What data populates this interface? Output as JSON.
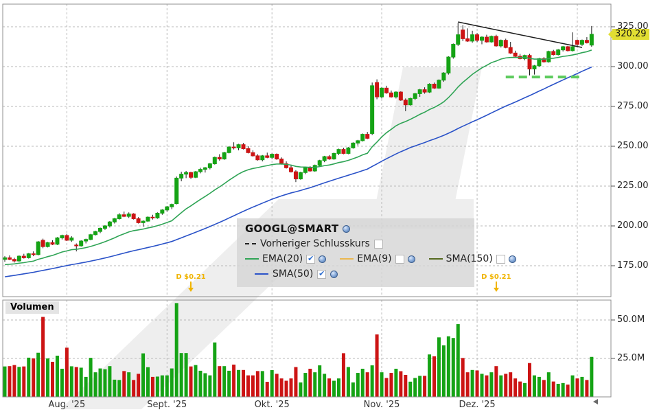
{
  "instrument": {
    "title": "GOOGL@SMART"
  },
  "legend": {
    "items": [
      {
        "label": "Vorheriger Schlusskurs",
        "style": "dashed",
        "color": "#222222",
        "checked": false,
        "globe": false
      },
      {
        "label": "EMA(20)",
        "style": "solid",
        "color": "#2fa455",
        "checked": true,
        "globe": true
      },
      {
        "label": "EMA(9)",
        "style": "solid",
        "color": "#eab74e",
        "checked": false,
        "globe": true
      },
      {
        "label": "SMA(150)",
        "style": "solid",
        "color": "#55691e",
        "checked": false,
        "globe": true
      },
      {
        "label": "SMA(50)",
        "style": "solid",
        "color": "#2a52c8",
        "checked": true,
        "globe": true
      }
    ]
  },
  "volume_label": "Volumen",
  "price_axis": {
    "ticks": [
      325,
      300,
      275,
      250,
      225,
      200,
      175
    ],
    "labels": [
      "325.00",
      "300.00",
      "275.00",
      "250.00",
      "225.00",
      "200.00",
      "175.00"
    ],
    "current_price": 320.29,
    "current_price_label": "320.29",
    "tag_color": "#e2de33"
  },
  "volume_axis": {
    "ticks": [
      50,
      25
    ],
    "labels": [
      "50.0M",
      "25.0M"
    ]
  },
  "x_axis": {
    "month_labels": [
      {
        "index": 13,
        "text": "Aug. '25"
      },
      {
        "index": 34,
        "text": "Sept. '25"
      },
      {
        "index": 56,
        "text": "Okt. '25"
      },
      {
        "index": 79,
        "text": "Nov. '25"
      },
      {
        "index": 99,
        "text": "Dez. '25"
      }
    ],
    "gridline_indices": [
      13,
      34,
      56,
      79,
      99,
      120
    ]
  },
  "dividends": [
    {
      "label": "D $0.21",
      "index": 39
    },
    {
      "label": "D $0.21",
      "index": 103
    }
  ],
  "annotations": {
    "trendline": {
      "i1": 95,
      "p1": 328.0,
      "i2": 121,
      "p2": 312.0
    },
    "support_dashed": {
      "i1": 105,
      "i2": 121,
      "price": 293.5
    }
  },
  "colors": {
    "up": "#15a315",
    "down": "#cc1414",
    "wick": "#1a1a1a",
    "ema20": "#2fa455",
    "sma50": "#2a52c8",
    "trend": "#1a1a1a",
    "support": "#5ecb5e",
    "grid": "#b9b9b9",
    "border": "#8f8f8f",
    "dividend": "#f0b400",
    "watermark": "#e3e3e3"
  },
  "chart_data": {
    "type": "candlestick+volume",
    "price_unit": "USD",
    "volume_unit": "millions of shares",
    "ylim_price": [
      162,
      332
    ],
    "ylim_volume": [
      0,
      63
    ],
    "visible_indicators": [
      "EMA(20)",
      "SMA(50)"
    ],
    "candles_format": [
      "open",
      "high",
      "low",
      "close",
      "volume_M"
    ],
    "candles": [
      [
        179.0,
        181.0,
        177.5,
        180.0,
        19.8
      ],
      [
        180.0,
        181.5,
        178.5,
        179.0,
        20.0
      ],
      [
        179.0,
        180.0,
        177.0,
        178.0,
        20.7
      ],
      [
        178.0,
        181.5,
        177.5,
        181.0,
        19.5
      ],
      [
        181.0,
        182.5,
        179.5,
        180.0,
        19.8
      ],
      [
        180.0,
        183.0,
        179.5,
        182.5,
        25.5
      ],
      [
        182.5,
        184.0,
        181.0,
        182.0,
        25.0
      ],
      [
        182.0,
        190.5,
        181.5,
        190.0,
        28.7
      ],
      [
        191.0,
        192.0,
        186.0,
        187.0,
        52.0
      ],
      [
        187.0,
        190.0,
        186.5,
        189.5,
        25.0
      ],
      [
        189.5,
        191.0,
        188.0,
        188.5,
        22.8
      ],
      [
        188.5,
        193.0,
        188.0,
        192.5,
        26.8
      ],
      [
        192.5,
        194.5,
        191.5,
        194.0,
        18.3
      ],
      [
        194.0,
        195.0,
        190.5,
        191.0,
        32.0
      ],
      [
        191.0,
        193.5,
        190.0,
        192.5,
        19.9
      ],
      [
        188.0,
        189.0,
        184.0,
        187.5,
        19.4
      ],
      [
        187.5,
        191.0,
        187.0,
        190.5,
        19.0
      ],
      [
        190.5,
        192.0,
        189.0,
        191.5,
        13.0
      ],
      [
        191.5,
        195.0,
        191.0,
        194.5,
        25.4
      ],
      [
        194.5,
        197.0,
        194.0,
        196.5,
        16.0
      ],
      [
        196.5,
        199.0,
        195.5,
        198.5,
        18.5
      ],
      [
        198.5,
        200.5,
        197.5,
        200.0,
        18.0
      ],
      [
        200.0,
        203.0,
        199.0,
        202.5,
        20.0
      ],
      [
        202.5,
        205.0,
        201.5,
        204.5,
        11.2
      ],
      [
        204.5,
        208.0,
        204.0,
        207.0,
        11.0
      ],
      [
        207.0,
        209.0,
        205.5,
        206.0,
        16.8
      ],
      [
        206.0,
        208.5,
        205.0,
        207.5,
        16.0
      ],
      [
        207.5,
        208.0,
        204.0,
        204.5,
        11.0
      ],
      [
        204.5,
        205.5,
        201.5,
        202.0,
        15.0
      ],
      [
        202.0,
        203.5,
        199.5,
        203.0,
        28.3
      ],
      [
        203.0,
        206.0,
        202.5,
        205.5,
        19.3
      ],
      [
        205.5,
        207.0,
        204.0,
        205.0,
        13.0
      ],
      [
        205.0,
        208.5,
        204.5,
        208.0,
        13.2
      ],
      [
        208.0,
        210.5,
        207.0,
        210.0,
        14.0
      ],
      [
        210.0,
        212.5,
        209.0,
        212.0,
        14.0
      ],
      [
        212.0,
        214.0,
        210.5,
        213.5,
        18.5
      ],
      [
        214.0,
        231.0,
        213.5,
        230.0,
        61.0
      ],
      [
        230.0,
        234.0,
        228.0,
        232.5,
        28.5
      ],
      [
        232.5,
        234.5,
        230.0,
        233.5,
        28.5
      ],
      [
        233.5,
        234.0,
        229.5,
        230.5,
        19.8
      ],
      [
        230.5,
        234.5,
        230.0,
        234.0,
        20.7
      ],
      [
        234.0,
        236.5,
        233.0,
        235.5,
        17.0
      ],
      [
        235.5,
        237.0,
        233.5,
        236.5,
        15.4
      ],
      [
        236.5,
        239.5,
        235.5,
        239.0,
        14.0
      ],
      [
        239.0,
        243.5,
        238.5,
        243.0,
        35.4
      ],
      [
        243.0,
        245.0,
        241.0,
        242.0,
        20.0
      ],
      [
        242.0,
        246.5,
        241.5,
        246.0,
        20.0
      ],
      [
        246.0,
        250.0,
        245.5,
        249.5,
        17.0
      ],
      [
        249.5,
        252.5,
        248.0,
        249.0,
        21.0
      ],
      [
        249.0,
        251.5,
        247.5,
        251.0,
        17.5
      ],
      [
        251.0,
        252.0,
        248.0,
        248.5,
        17.5
      ],
      [
        248.5,
        250.0,
        245.5,
        246.0,
        14.0
      ],
      [
        246.0,
        247.5,
        243.5,
        244.0,
        14.0
      ],
      [
        244.0,
        245.0,
        241.0,
        241.5,
        16.8
      ],
      [
        241.5,
        244.5,
        240.5,
        244.0,
        16.8
      ],
      [
        244.0,
        246.0,
        242.5,
        243.0,
        9.8
      ],
      [
        243.0,
        245.5,
        242.0,
        245.0,
        17.4
      ],
      [
        245.0,
        245.5,
        241.5,
        242.0,
        15.0
      ],
      [
        242.0,
        243.0,
        238.5,
        239.0,
        12.0
      ],
      [
        239.0,
        240.5,
        236.0,
        236.5,
        10.5
      ],
      [
        236.5,
        238.0,
        233.5,
        234.0,
        12.0
      ],
      [
        234.0,
        235.0,
        227.5,
        229.5,
        19.4
      ],
      [
        229.5,
        234.0,
        229.0,
        233.5,
        9.4
      ],
      [
        233.5,
        237.0,
        232.5,
        236.5,
        15.6
      ],
      [
        236.5,
        237.5,
        234.0,
        234.5,
        18.3
      ],
      [
        234.5,
        238.5,
        234.0,
        238.0,
        16.0
      ],
      [
        238.0,
        241.5,
        237.5,
        241.0,
        20.5
      ],
      [
        241.0,
        244.0,
        240.0,
        243.5,
        15.0
      ],
      [
        243.5,
        244.5,
        241.5,
        242.0,
        12.0
      ],
      [
        242.0,
        246.0,
        241.5,
        245.5,
        10.5
      ],
      [
        245.5,
        248.5,
        244.5,
        248.0,
        12.0
      ],
      [
        248.0,
        249.0,
        245.0,
        245.5,
        28.4
      ],
      [
        245.5,
        249.5,
        245.0,
        249.0,
        19.4
      ],
      [
        249.0,
        252.5,
        248.5,
        252.0,
        9.4
      ],
      [
        252.0,
        254.0,
        250.5,
        253.5,
        15.6
      ],
      [
        253.5,
        258.0,
        253.0,
        257.5,
        18.3
      ],
      [
        257.5,
        259.0,
        254.5,
        255.0,
        16.0
      ],
      [
        258.0,
        290.0,
        257.0,
        288.0,
        20.5
      ],
      [
        290.0,
        292.0,
        279.5,
        281.0,
        40.6
      ],
      [
        281.0,
        287.0,
        280.0,
        286.5,
        16.0
      ],
      [
        286.5,
        288.0,
        283.0,
        283.5,
        12.3
      ],
      [
        283.5,
        285.0,
        280.5,
        281.0,
        15.6
      ],
      [
        281.0,
        284.5,
        280.0,
        284.0,
        18.3
      ],
      [
        284.0,
        284.5,
        278.5,
        279.0,
        16.7
      ],
      [
        279.0,
        280.0,
        272.0,
        276.0,
        14.3
      ],
      [
        276.0,
        280.5,
        275.5,
        280.0,
        9.9
      ],
      [
        280.0,
        283.5,
        279.0,
        283.0,
        12.3
      ],
      [
        283.0,
        286.0,
        281.0,
        285.5,
        13.7
      ],
      [
        285.5,
        287.0,
        283.0,
        284.0,
        13.7
      ],
      [
        284.0,
        289.5,
        283.5,
        289.0,
        27.6
      ],
      [
        289.0,
        290.0,
        286.0,
        286.5,
        26.4
      ],
      [
        286.5,
        292.0,
        286.0,
        291.5,
        38.7
      ],
      [
        291.5,
        296.5,
        290.5,
        296.0,
        33.5
      ],
      [
        296.0,
        306.5,
        295.0,
        306.0,
        39.4
      ],
      [
        306.0,
        314.5,
        305.0,
        314.0,
        38.3
      ],
      [
        314.0,
        327.5,
        313.0,
        320.0,
        47.3
      ],
      [
        323.0,
        326.0,
        316.0,
        317.5,
        25.3
      ],
      [
        317.5,
        324.0,
        315.5,
        316.0,
        16.0
      ],
      [
        316.0,
        322.5,
        315.0,
        320.0,
        17.5
      ],
      [
        320.0,
        321.0,
        315.5,
        316.5,
        17.2
      ],
      [
        316.5,
        319.0,
        314.0,
        318.5,
        15.0
      ],
      [
        318.5,
        320.0,
        315.0,
        315.5,
        14.0
      ],
      [
        315.5,
        319.5,
        315.0,
        319.0,
        16.0
      ],
      [
        319.0,
        320.0,
        312.5,
        313.0,
        20.0
      ],
      [
        313.0,
        317.0,
        312.0,
        316.5,
        14.0
      ],
      [
        316.5,
        317.5,
        311.5,
        312.0,
        15.0
      ],
      [
        312.0,
        315.5,
        308.0,
        308.5,
        16.0
      ],
      [
        308.5,
        310.0,
        306.0,
        306.5,
        12.0
      ],
      [
        306.5,
        308.0,
        304.5,
        305.0,
        10.0
      ],
      [
        305.0,
        307.5,
        304.0,
        307.0,
        9.0
      ],
      [
        307.0,
        308.0,
        294.5,
        298.5,
        22.0
      ],
      [
        298.5,
        301.0,
        295.0,
        300.5,
        14.0
      ],
      [
        300.5,
        305.5,
        300.0,
        305.0,
        13.0
      ],
      [
        305.0,
        306.0,
        302.5,
        303.0,
        11.0
      ],
      [
        303.0,
        310.0,
        302.5,
        309.5,
        16.0
      ],
      [
        309.5,
        310.5,
        307.0,
        307.5,
        10.0
      ],
      [
        307.5,
        311.0,
        307.0,
        310.5,
        8.5
      ],
      [
        310.5,
        313.0,
        309.5,
        312.5,
        9.0
      ],
      [
        312.5,
        313.0,
        309.5,
        310.0,
        8.0
      ],
      [
        310.0,
        321.5,
        309.5,
        312.5,
        14.0
      ],
      [
        316.5,
        317.0,
        312.0,
        314.0,
        12.0
      ],
      [
        314.0,
        317.0,
        313.0,
        316.5,
        13.0
      ],
      [
        316.5,
        318.5,
        314.5,
        315.0,
        11.0
      ],
      [
        313.5,
        325.5,
        312.5,
        320.29,
        26.0
      ]
    ]
  }
}
